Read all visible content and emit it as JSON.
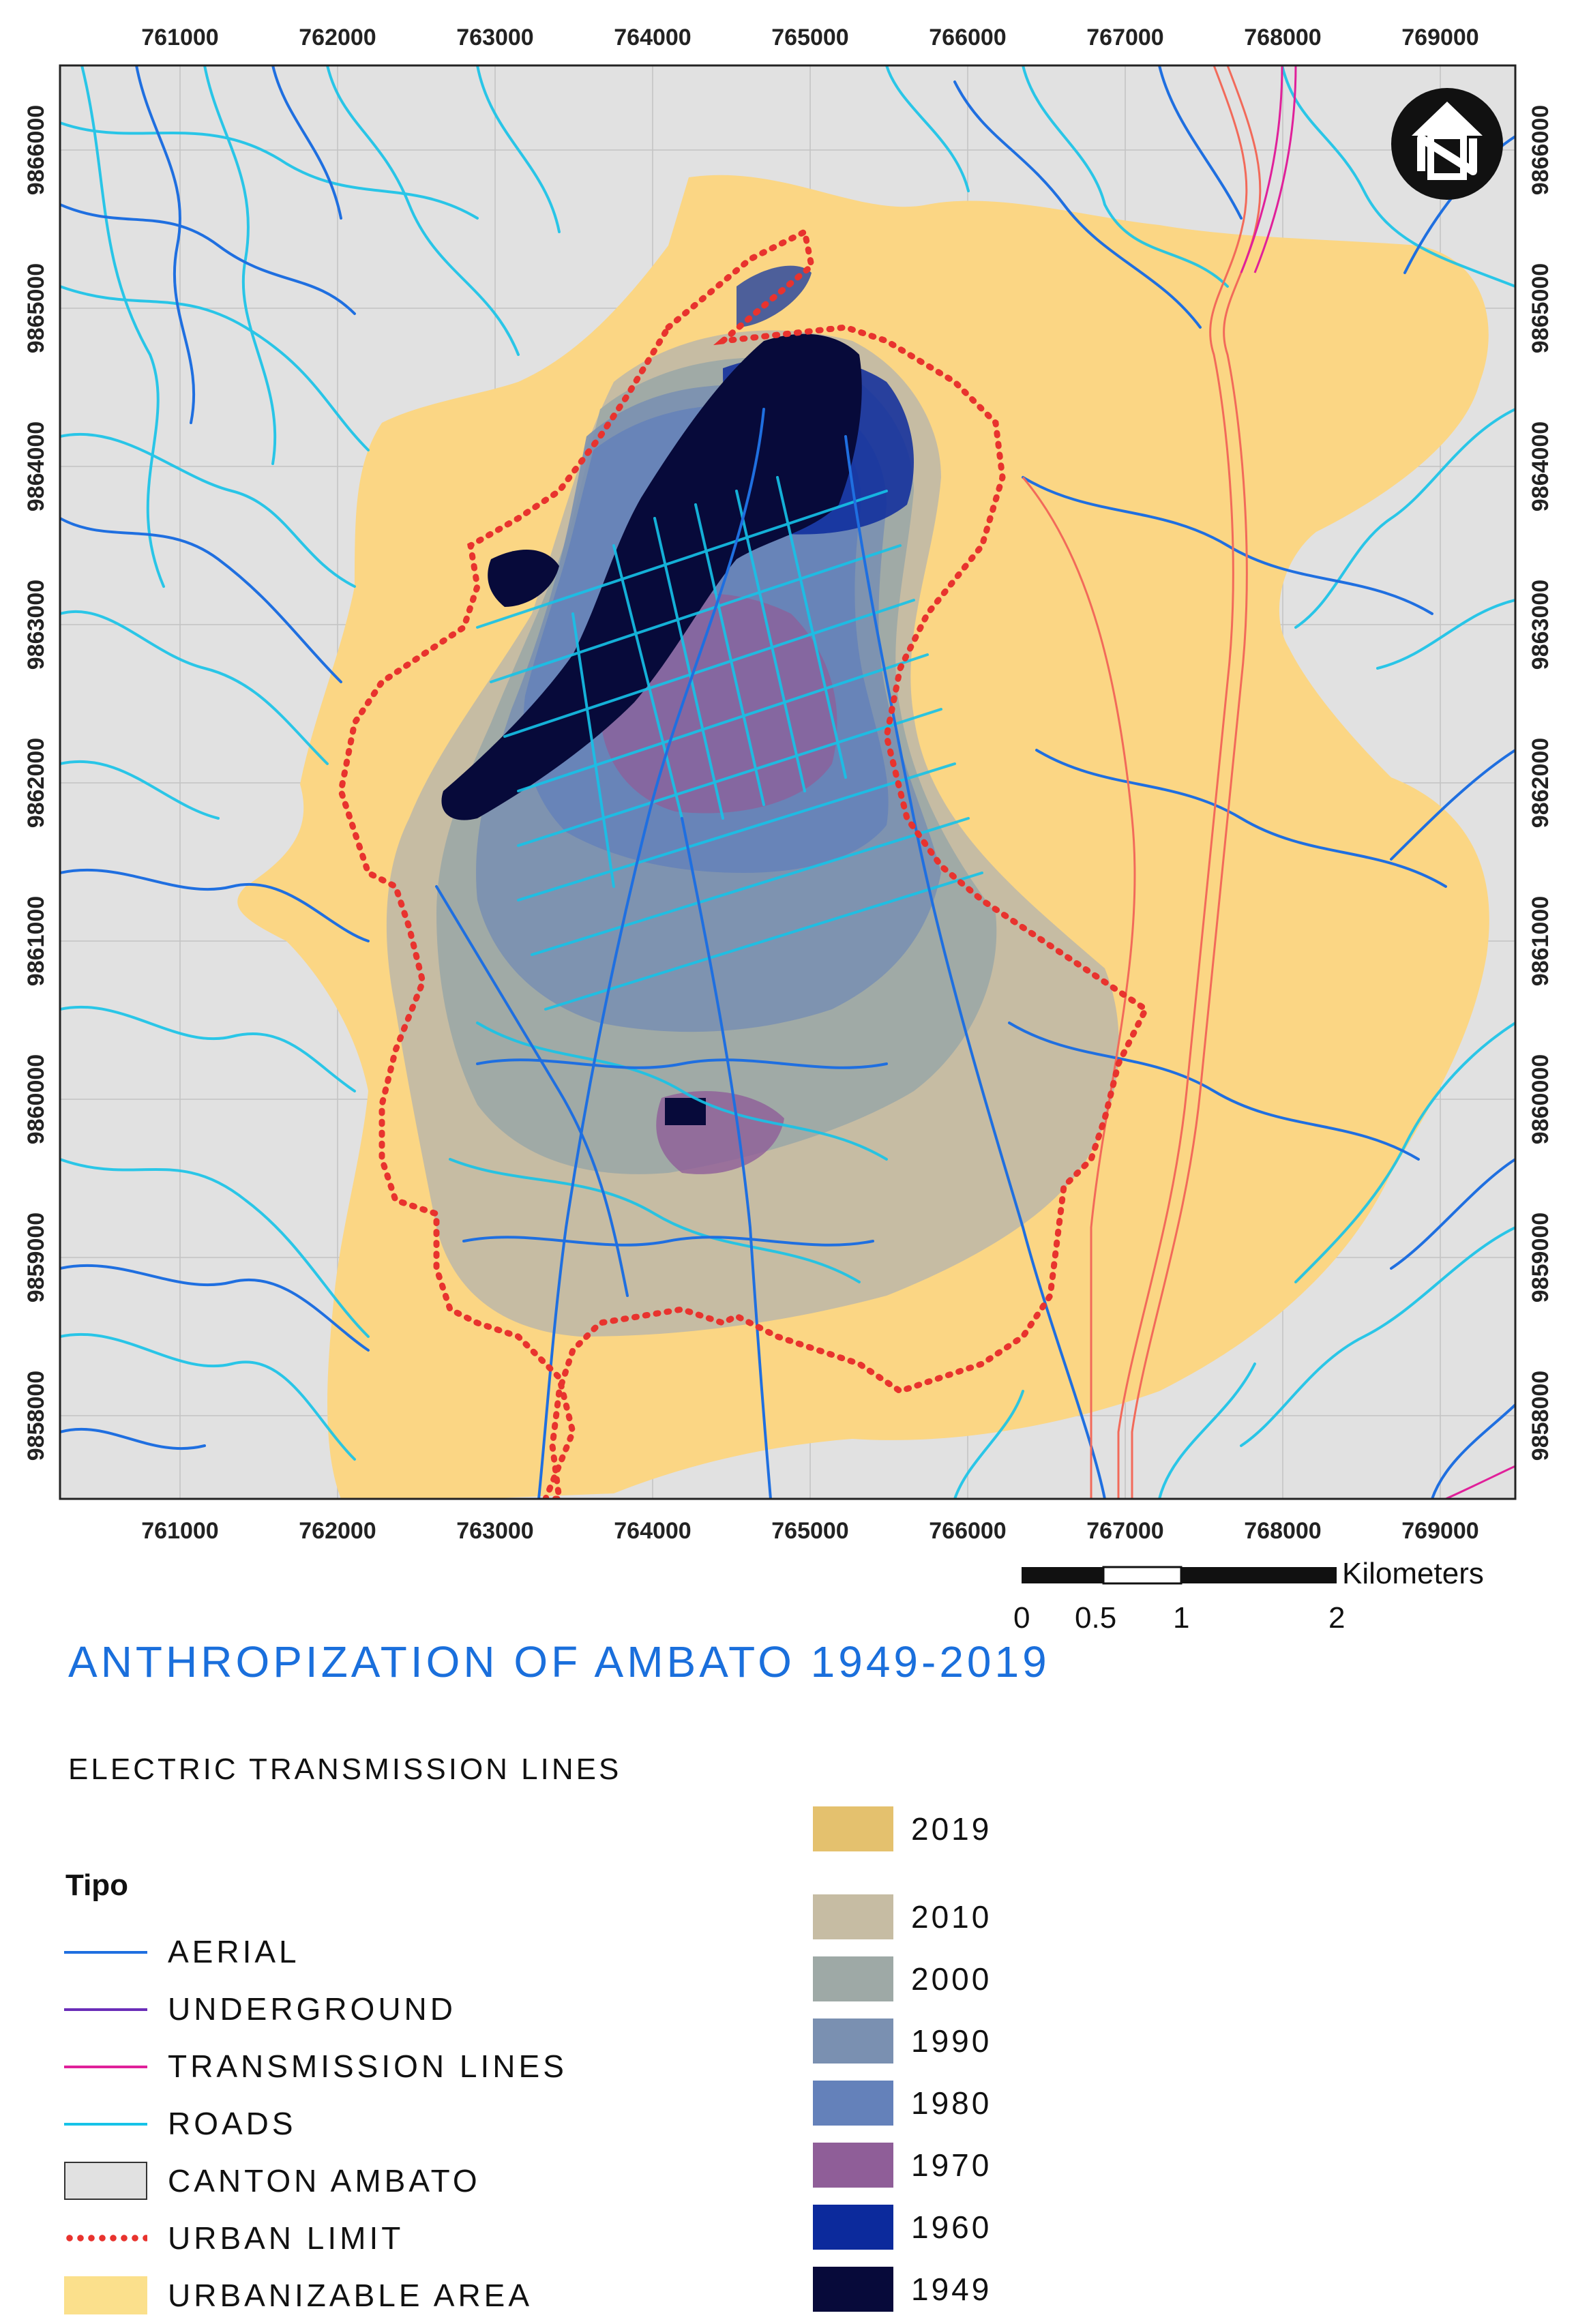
{
  "map": {
    "x_ticks": [
      "761000",
      "762000",
      "763000",
      "764000",
      "765000",
      "766000",
      "767000",
      "768000",
      "769000"
    ],
    "y_ticks": [
      "9866000",
      "9865000",
      "9864000",
      "9863000",
      "9862000",
      "9861000",
      "9860000",
      "9859000",
      "9858000"
    ],
    "north_arrow_icon": "north-arrow-icon",
    "colors": {
      "canton": "#e1e1e1",
      "urbanizable": "#fbd684",
      "aerial": "#1f6fe0",
      "underground": "#6a2db8",
      "transmission": "#e0209a",
      "roads": "#16c3e8",
      "urban_limit": "#e8332e"
    }
  },
  "scale_bar": {
    "unit": "Kilometers",
    "labels": [
      "0",
      "0.5",
      "1",
      "2"
    ]
  },
  "title": "ANTHROPIZATION OF AMBATO 1949-2019",
  "subtitle": "ELECTRIC TRANSMISSION LINES",
  "legend": {
    "heading": "Tipo",
    "items": [
      {
        "label": "AERIAL",
        "kind": "line",
        "color": "#1f6fe0"
      },
      {
        "label": "UNDERGROUND",
        "kind": "line",
        "color": "#6a2db8"
      },
      {
        "label": "TRANSMISSION LINES",
        "kind": "line",
        "color": "#e0209a"
      },
      {
        "label": "ROADS",
        "kind": "line",
        "color": "#16c3e8"
      },
      {
        "label": "CANTON AMBATO",
        "kind": "box",
        "color": "#e1e1e1"
      },
      {
        "label": "URBAN LIMIT",
        "kind": "dots",
        "color": "#e8332e"
      },
      {
        "label": "URBANIZABLE AREA",
        "kind": "box",
        "color": "#fbe08c"
      }
    ],
    "years": [
      {
        "label": "2019",
        "color": "#e4c16e"
      },
      {
        "label": "2010",
        "color": "#c6bca3"
      },
      {
        "label": "2000",
        "color": "#9ea9a6"
      },
      {
        "label": "1990",
        "color": "#7a90b1"
      },
      {
        "label": "1980",
        "color": "#6481ba"
      },
      {
        "label": "1970",
        "color": "#8f5e98"
      },
      {
        "label": "1960",
        "color": "#0c2a9c"
      },
      {
        "label": "1949",
        "color": "#070a3a"
      }
    ]
  }
}
